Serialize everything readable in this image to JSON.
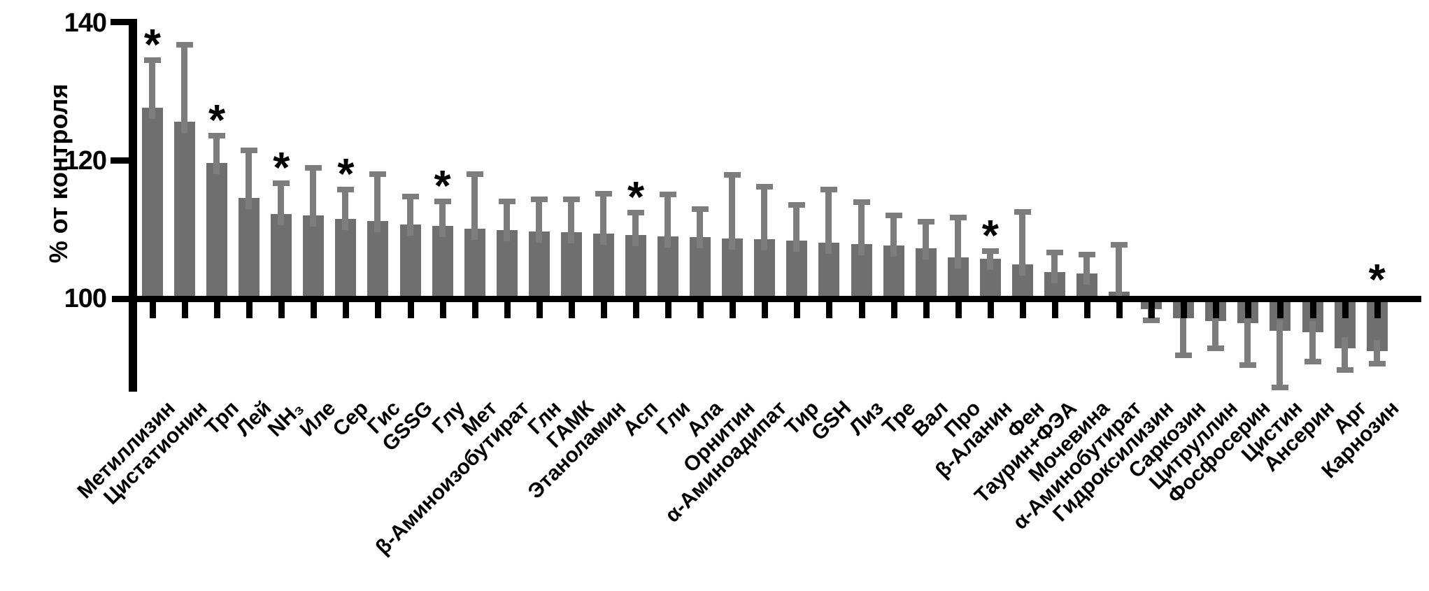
{
  "chart_data": {
    "type": "bar",
    "title": "",
    "xlabel": "",
    "ylabel": "% от контроля",
    "yticks": [
      140,
      120,
      100
    ],
    "ytick_labels": [
      "140",
      "120",
      "100"
    ],
    "ylim": [
      86,
      140
    ],
    "baseline": 100,
    "grid": false,
    "legend": null,
    "significance_marker": "*",
    "bar_color": "#6F6F6F",
    "error_bar_color": "#7D7D7D",
    "axis_color": "#000000",
    "background_color": "#FFFFFF",
    "error_bars": "one-sided, drawn away from baseline 100",
    "bars": [
      {
        "label": "Метиллизин",
        "value": 127.7,
        "err": 7.3,
        "star": true
      },
      {
        "label": "Цистатионин",
        "value": 125.7,
        "err": 11.6,
        "star": false
      },
      {
        "label": "Трп",
        "value": 119.7,
        "err": 4.4,
        "star": true
      },
      {
        "label": "Лей",
        "value": 114.6,
        "err": 7.3,
        "star": false
      },
      {
        "label": "NH₃",
        "value": 112.3,
        "err": 4.9,
        "star": true
      },
      {
        "label": "Иле",
        "value": 112.1,
        "err": 7.3,
        "star": false
      },
      {
        "label": "Сер",
        "value": 111.6,
        "err": 4.6,
        "star": true
      },
      {
        "label": "Гис",
        "value": 111.3,
        "err": 7.2,
        "star": false
      },
      {
        "label": "GSSG",
        "value": 110.8,
        "err": 4.4,
        "star": false
      },
      {
        "label": "Глу",
        "value": 110.6,
        "err": 3.9,
        "star": true
      },
      {
        "label": "Мет",
        "value": 110.2,
        "err": 8.3,
        "star": false
      },
      {
        "label": "β-Аминоизобутират",
        "value": 109.9,
        "err": 4.6,
        "star": false
      },
      {
        "label": "Глн",
        "value": 109.7,
        "err": 5.1,
        "star": false
      },
      {
        "label": "ГАМК",
        "value": 109.6,
        "err": 5.2,
        "star": false
      },
      {
        "label": "Этаноламин",
        "value": 109.4,
        "err": 6.2,
        "star": false
      },
      {
        "label": "Асп",
        "value": 109.2,
        "err": 3.7,
        "star": true
      },
      {
        "label": "Гли",
        "value": 109.0,
        "err": 6.5,
        "star": false
      },
      {
        "label": "Ала",
        "value": 108.9,
        "err": 4.5,
        "star": false
      },
      {
        "label": "Орнитин",
        "value": 108.7,
        "err": 9.7,
        "star": false
      },
      {
        "label": "α-Аминоадипат",
        "value": 108.6,
        "err": 8.0,
        "star": false
      },
      {
        "label": "Тир",
        "value": 108.4,
        "err": 5.6,
        "star": false
      },
      {
        "label": "GSH",
        "value": 108.1,
        "err": 8.1,
        "star": false
      },
      {
        "label": "Лиз",
        "value": 107.9,
        "err": 6.5,
        "star": false
      },
      {
        "label": "Тре",
        "value": 107.7,
        "err": 4.8,
        "star": false
      },
      {
        "label": "Вал",
        "value": 107.3,
        "err": 4.3,
        "star": false
      },
      {
        "label": "Про",
        "value": 106.0,
        "err": 6.2,
        "star": false
      },
      {
        "label": "β-Аланин",
        "value": 105.8,
        "err": 1.5,
        "star": true
      },
      {
        "label": "Фен",
        "value": 105.0,
        "err": 8.0,
        "star": false
      },
      {
        "label": "Таурин+ФЭА",
        "value": 103.9,
        "err": 3.2,
        "star": false
      },
      {
        "label": "Мочевина",
        "value": 103.7,
        "err": 3.1,
        "star": false
      },
      {
        "label": "α-Аминобутират",
        "value": 101.0,
        "err": 7.2,
        "star": false
      },
      {
        "label": "Гидроксилизин",
        "value": 98.5,
        "err": 2.1,
        "star": false
      },
      {
        "label": "Саркозин",
        "value": 97.2,
        "err": 5.8,
        "star": false
      },
      {
        "label": "Цитруллин",
        "value": 96.8,
        "err": 4.4,
        "star": false
      },
      {
        "label": "Фосфосерин",
        "value": 96.4,
        "err": 6.5,
        "star": false
      },
      {
        "label": "Цистин",
        "value": 95.3,
        "err": 8.6,
        "star": false
      },
      {
        "label": "Ансерин",
        "value": 95.1,
        "err": 4.6,
        "star": false
      },
      {
        "label": "Арг",
        "value": 92.8,
        "err": 3.6,
        "star": false
      },
      {
        "label": "Карнозин",
        "value": 92.4,
        "err": 2.2,
        "star": true
      }
    ]
  }
}
